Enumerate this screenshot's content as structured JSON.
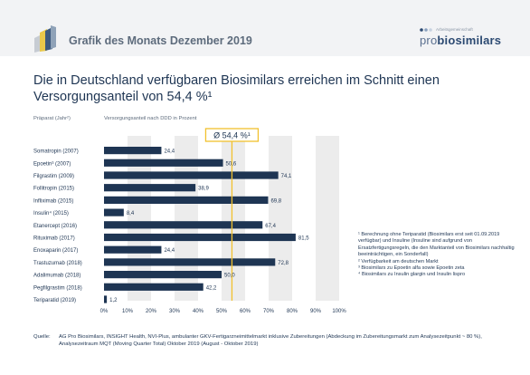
{
  "header": {
    "title": "Grafik des Monats Dezember 2019",
    "brand_small": "Arbeitsgemeinschaft",
    "brand_pro": "pro",
    "brand_main": "biosimilars"
  },
  "headline": "Die in Deutschland verfügbaren Biosimilars erreichen im Schnitt einen Versorgungsanteil von 54,4 %¹",
  "footnotes": [
    "¹  Berechnung ohne Teriparatid (Biosimilars erst seit 01.09.2019 verfügbar) und Insuline (Insuline sind aufgrund von Ersatzfertigungsregeln, die den Marktanteil von Biosimilars nachhaltig beeinträchtigen, ein Sonderfall)",
    "²  Verfügbarkeit am deutschen Markt",
    "³  Biosimilars zu Epoetin alfa sowie Epoetin zeta",
    "⁴  Biosimilars zu Insulin glargin und Insulin lispro"
  ],
  "source": {
    "label": "Quelle:",
    "text": "AG Pro Biosimilars, INSIGHT Health, NVI-Plus, ambulanter GKV-Fertigarzneimittelmarkt inklusive Zubereitungen (Abdeckung im Zubereitungsmarkt zum Analysezeitpunkt ~ 80 %), Analysezeitraum MQT (Moving Quarter Total) Oktober 2019 (August - Oktober 2019)"
  },
  "chart_data": {
    "type": "bar",
    "orientation": "horizontal",
    "category_header": "Präparat (Jahr²)",
    "value_header": "Versorgungsanteil nach DDD in Prozent",
    "categories": [
      "Somatropin (2007)",
      "Epoetin³ (2007)",
      "Filgrastim (2009)",
      "Follitropin (2015)",
      "Infliximab (2015)",
      "Insulin⁴ (2015)",
      "Etanercept (2016)",
      "Rituximab (2017)",
      "Enoxaparin (2017)",
      "Trastuzumab (2018)",
      "Adalimumab (2018)",
      "Pegfilgrastim (2018)",
      "Teriparatid (2019)"
    ],
    "values": [
      24.4,
      50.6,
      74.1,
      38.9,
      69.8,
      8.4,
      67.4,
      81.5,
      24.4,
      72.8,
      50.0,
      42.2,
      1.2
    ],
    "value_labels": [
      "24,4",
      "50,6",
      "74,1",
      "38,9",
      "69,8",
      "8,4",
      "67,4",
      "81,5",
      "24,4",
      "72,8",
      "50,0",
      "42,2",
      "1,2"
    ],
    "xlim": [
      0,
      100
    ],
    "x_ticks": [
      "0%",
      "10%",
      "20%",
      "30%",
      "40%",
      "50%",
      "60%",
      "70%",
      "80%",
      "90%",
      "100%"
    ],
    "average": 54.4,
    "average_label": "Ø  54,4 %¹",
    "colors": {
      "bar": "#1e3553",
      "average": "#f2c12e",
      "grid_band": "#ececec"
    }
  }
}
